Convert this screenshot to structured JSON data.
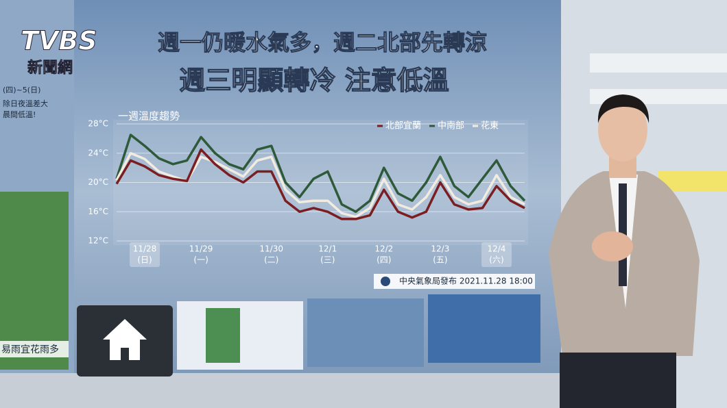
{
  "logo": {
    "brand": "TVBS",
    "sub": "新聞網"
  },
  "header": {
    "line_1": "週一仍暖水氣多，週二北部先轉涼",
    "line_2": "週三明顯轉冷 注意低溫"
  },
  "left_panel": {
    "date_range": "(四)~5(日)",
    "note_1": "除日夜溫差大",
    "note_2": "晨間低溫!",
    "caption": "易雨宜花雨多"
  },
  "source": "中央氣象局發布 2021.11.28 18:00",
  "chart_data": {
    "type": "line",
    "title": "一週溫度趨勢",
    "categories": [
      null,
      null,
      "11/28",
      null,
      null,
      null,
      "11/29",
      null,
      null,
      null,
      null,
      "11/30",
      null,
      null,
      null,
      "12/1",
      null,
      null,
      null,
      "12/2",
      null,
      null,
      null,
      "12/3",
      null,
      null,
      null,
      "12/4",
      null,
      null
    ],
    "category_sublabels": [
      null,
      null,
      "(日)",
      null,
      null,
      null,
      "(一)",
      null,
      null,
      null,
      null,
      "(二)",
      null,
      null,
      null,
      "(三)",
      null,
      null,
      null,
      "(四)",
      null,
      null,
      null,
      "(五)",
      null,
      null,
      null,
      "(六)",
      null,
      null
    ],
    "series": [
      {
        "name": "北部宜蘭",
        "color": "#7a1e22",
        "values": [
          19.8,
          23.0,
          22.2,
          21.0,
          20.5,
          20.2,
          24.5,
          22.5,
          21.0,
          20.0,
          21.5,
          21.5,
          17.5,
          16.0,
          16.5,
          16.0,
          15.0,
          15.0,
          15.5,
          19.0,
          16.0,
          15.2,
          16.0,
          20.0,
          17.0,
          16.3,
          16.5,
          19.5,
          17.5,
          16.5
        ]
      },
      {
        "name": "中南部",
        "color": "#2e5a3a",
        "values": [
          20.5,
          26.5,
          25.0,
          23.3,
          22.5,
          23.0,
          26.2,
          24.0,
          22.5,
          21.8,
          24.5,
          25.0,
          20.0,
          18.0,
          20.5,
          21.5,
          17.0,
          16.0,
          17.5,
          22.0,
          18.5,
          17.5,
          20.0,
          23.5,
          19.5,
          18.0,
          20.5,
          23.0,
          19.5,
          17.5
        ]
      },
      {
        "name": "花東",
        "color": "#f2ece0",
        "values": [
          20.3,
          24.0,
          23.2,
          21.5,
          20.8,
          20.2,
          23.5,
          22.8,
          21.8,
          20.8,
          23.0,
          23.5,
          19.0,
          17.3,
          17.5,
          17.5,
          15.8,
          15.3,
          16.5,
          20.5,
          17.0,
          16.3,
          18.0,
          21.0,
          18.0,
          17.0,
          17.5,
          21.0,
          18.0,
          17.0
        ]
      }
    ],
    "ylim": [
      12,
      28
    ],
    "yticks": [
      {
        "value": 12,
        "label": "12°C"
      },
      {
        "value": 16,
        "label": "16°C"
      },
      {
        "value": 20,
        "label": "20°C"
      },
      {
        "value": 24,
        "label": "24°C"
      },
      {
        "value": 28,
        "label": "28°C"
      }
    ],
    "grid": true
  }
}
